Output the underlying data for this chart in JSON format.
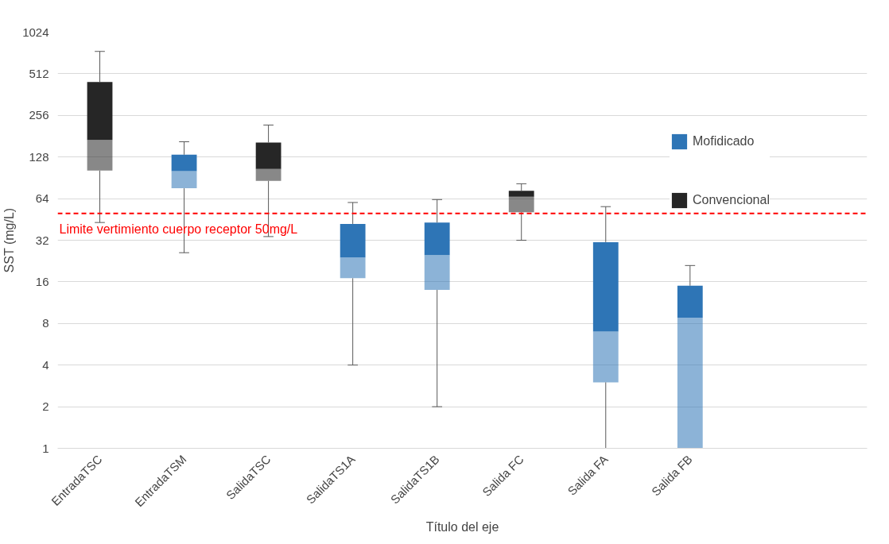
{
  "chart_data": {
    "type": "box",
    "xlabel": "Título del eje",
    "ylabel": "SST (mg/L)",
    "categories": [
      "EntradaTSC",
      "EntradaTSM",
      "SalidaTSC",
      "SalidaTS1A",
      "SalidaTS1B",
      "Salida FC",
      "Salida FA",
      "Salida FB"
    ],
    "series": [
      {
        "name": "Mofidicado",
        "color": "#2e75b6",
        "boxes": [
          null,
          {
            "low": 26,
            "q1": 76,
            "median": 101,
            "q3": 133,
            "high": 165
          },
          null,
          {
            "low": 4,
            "q1": 17,
            "median": 24,
            "q3": 42,
            "high": 60
          },
          {
            "low": 2,
            "q1": 14,
            "median": 25,
            "q3": 43,
            "high": 63
          },
          null,
          {
            "low": 1,
            "q1": 3,
            "median": 7,
            "q3": 31,
            "high": 56
          },
          {
            "low": 1,
            "q1": 1,
            "median": 8.8,
            "q3": 15,
            "high": 21
          }
        ]
      },
      {
        "name": "Convencional",
        "color": "#262626",
        "boxes": [
          {
            "low": 43,
            "q1": 102,
            "median": 170,
            "q3": 446,
            "high": 743
          },
          null,
          {
            "low": 34,
            "q1": 86,
            "median": 105,
            "q3": 163,
            "high": 218
          },
          null,
          null,
          {
            "low": 32,
            "q1": 51,
            "median": 66,
            "q3": 73,
            "high": 82
          },
          null,
          null
        ]
      }
    ],
    "log": true,
    "ylim": [
      1,
      1024
    ],
    "yticks": [
      1,
      2,
      4,
      8,
      16,
      32,
      64,
      128,
      256,
      512,
      1024
    ],
    "grid": "y",
    "legend": "right",
    "ref_lines": [
      {
        "axis": "y",
        "value": 50,
        "label": "Limite  vertimiento cuerpo receptor 50mg/L",
        "color": "#ff0000",
        "line_style": "dashed"
      }
    ]
  }
}
